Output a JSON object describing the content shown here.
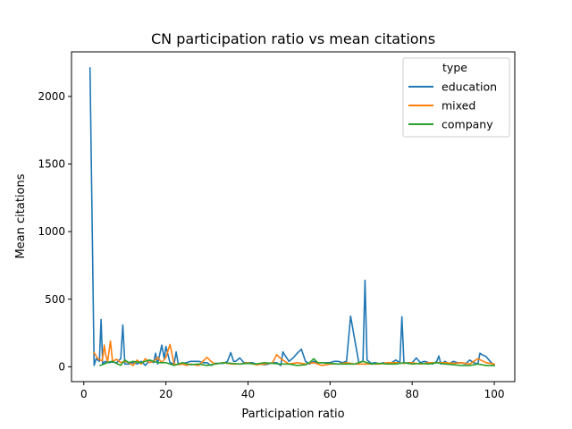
{
  "chart_data": {
    "type": "line",
    "title": "CN participation ratio vs mean citations",
    "xlabel": "Participation ratio",
    "ylabel": "Mean citations",
    "xlim": [
      -3,
      105
    ],
    "ylim": [
      -110,
      2330
    ],
    "xticks": [
      0,
      20,
      40,
      60,
      80,
      100
    ],
    "yticks": [
      0,
      500,
      1000,
      1500,
      2000
    ],
    "grid": false,
    "legend": {
      "title": "type",
      "placement": "top-right"
    },
    "series": [
      {
        "name": "education",
        "color": "#1f77b4",
        "points": [
          [
            1.5,
            2210
          ],
          [
            2.5,
            10
          ],
          [
            3,
            60
          ],
          [
            3.8,
            40
          ],
          [
            4.2,
            350
          ],
          [
            4.6,
            20
          ],
          [
            5.2,
            40
          ],
          [
            6,
            30
          ],
          [
            7,
            35
          ],
          [
            8,
            30
          ],
          [
            9,
            60
          ],
          [
            9.5,
            310
          ],
          [
            10,
            20
          ],
          [
            11,
            20
          ],
          [
            12,
            30
          ],
          [
            13,
            20
          ],
          [
            14,
            40
          ],
          [
            15,
            10
          ],
          [
            16,
            50
          ],
          [
            17,
            30
          ],
          [
            17.5,
            100
          ],
          [
            18,
            20
          ],
          [
            19,
            160
          ],
          [
            19.6,
            60
          ],
          [
            20,
            150
          ],
          [
            21,
            30
          ],
          [
            22,
            20
          ],
          [
            22.5,
            110
          ],
          [
            23,
            20
          ],
          [
            25,
            30
          ],
          [
            26,
            40
          ],
          [
            27,
            40
          ],
          [
            28,
            40
          ],
          [
            29,
            30
          ],
          [
            30,
            30
          ],
          [
            31,
            10
          ],
          [
            32,
            25
          ],
          [
            33,
            25
          ],
          [
            34,
            25
          ],
          [
            35,
            40
          ],
          [
            35.8,
            105
          ],
          [
            36.5,
            40
          ],
          [
            37,
            40
          ],
          [
            38,
            65
          ],
          [
            39,
            30
          ],
          [
            40,
            30
          ],
          [
            41,
            30
          ],
          [
            42,
            20
          ],
          [
            43,
            20
          ],
          [
            44,
            15
          ],
          [
            45,
            20
          ],
          [
            46,
            30
          ],
          [
            47,
            30
          ],
          [
            48,
            10
          ],
          [
            48.5,
            110
          ],
          [
            49,
            85
          ],
          [
            50,
            40
          ],
          [
            51,
            65
          ],
          [
            52,
            100
          ],
          [
            53,
            130
          ],
          [
            54,
            40
          ],
          [
            55,
            20
          ],
          [
            56,
            40
          ],
          [
            57,
            30
          ],
          [
            58,
            30
          ],
          [
            59,
            30
          ],
          [
            60,
            30
          ],
          [
            61,
            40
          ],
          [
            62,
            40
          ],
          [
            63,
            30
          ],
          [
            64,
            40
          ],
          [
            65,
            375
          ],
          [
            66,
            200
          ],
          [
            67,
            30
          ],
          [
            68,
            40
          ],
          [
            68.5,
            640
          ],
          [
            69,
            50
          ],
          [
            70,
            25
          ],
          [
            71,
            30
          ],
          [
            72,
            20
          ],
          [
            73,
            30
          ],
          [
            74,
            20
          ],
          [
            75,
            30
          ],
          [
            76,
            50
          ],
          [
            77,
            30
          ],
          [
            77.5,
            370
          ],
          [
            78,
            25
          ],
          [
            79,
            30
          ],
          [
            80,
            30
          ],
          [
            81,
            65
          ],
          [
            82,
            30
          ],
          [
            83,
            40
          ],
          [
            84,
            30
          ],
          [
            85,
            20
          ],
          [
            86,
            40
          ],
          [
            86.5,
            80
          ],
          [
            87,
            20
          ],
          [
            88,
            40
          ],
          [
            89,
            20
          ],
          [
            90,
            40
          ],
          [
            91,
            30
          ],
          [
            92,
            30
          ],
          [
            93,
            20
          ],
          [
            94,
            50
          ],
          [
            95,
            30
          ],
          [
            96,
            20
          ],
          [
            96.5,
            100
          ],
          [
            97,
            90
          ],
          [
            98,
            75
          ],
          [
            99,
            40
          ],
          [
            100,
            10
          ]
        ]
      },
      {
        "name": "mixed",
        "color": "#ff7f0e",
        "points": [
          [
            2.5,
            105
          ],
          [
            3.5,
            55
          ],
          [
            4.5,
            45
          ],
          [
            5,
            160
          ],
          [
            5.3,
            90
          ],
          [
            5.8,
            40
          ],
          [
            6.5,
            190
          ],
          [
            7,
            40
          ],
          [
            8,
            55
          ],
          [
            9,
            30
          ],
          [
            10,
            40
          ],
          [
            11,
            30
          ],
          [
            12,
            10
          ],
          [
            13,
            50
          ],
          [
            14,
            20
          ],
          [
            15,
            60
          ],
          [
            16,
            30
          ],
          [
            17,
            40
          ],
          [
            18,
            70
          ],
          [
            19,
            30
          ],
          [
            20,
            70
          ],
          [
            21,
            165
          ],
          [
            22,
            20
          ],
          [
            23,
            15
          ],
          [
            24,
            20
          ],
          [
            25,
            10
          ],
          [
            26,
            20
          ],
          [
            28,
            10
          ],
          [
            29,
            40
          ],
          [
            30,
            70
          ],
          [
            31,
            40
          ],
          [
            32,
            20
          ],
          [
            34,
            30
          ],
          [
            36,
            20
          ],
          [
            38,
            20
          ],
          [
            40,
            30
          ],
          [
            42,
            15
          ],
          [
            44,
            20
          ],
          [
            46,
            30
          ],
          [
            47,
            90
          ],
          [
            48,
            60
          ],
          [
            50,
            20
          ],
          [
            52,
            30
          ],
          [
            54,
            20
          ],
          [
            56,
            30
          ],
          [
            58,
            10
          ],
          [
            60,
            20
          ],
          [
            62,
            20
          ],
          [
            64,
            30
          ],
          [
            66,
            20
          ],
          [
            68,
            20
          ],
          [
            70,
            20
          ],
          [
            72,
            20
          ],
          [
            74,
            30
          ],
          [
            76,
            30
          ],
          [
            78,
            25
          ],
          [
            80,
            30
          ],
          [
            82,
            20
          ],
          [
            84,
            30
          ],
          [
            86,
            30
          ],
          [
            88,
            30
          ],
          [
            90,
            25
          ],
          [
            92,
            30
          ],
          [
            94,
            20
          ],
          [
            96,
            60
          ],
          [
            98,
            30
          ],
          [
            100,
            20
          ]
        ]
      },
      {
        "name": "company",
        "color": "#2ca02c",
        "points": [
          [
            4,
            10
          ],
          [
            5,
            20
          ],
          [
            6,
            35
          ],
          [
            7,
            40
          ],
          [
            8,
            25
          ],
          [
            9,
            10
          ],
          [
            10,
            50
          ],
          [
            11,
            30
          ],
          [
            12,
            40
          ],
          [
            14,
            30
          ],
          [
            16,
            50
          ],
          [
            18,
            30
          ],
          [
            20,
            30
          ],
          [
            22,
            10
          ],
          [
            24,
            30
          ],
          [
            26,
            15
          ],
          [
            28,
            20
          ],
          [
            30,
            10
          ],
          [
            32,
            20
          ],
          [
            34,
            30
          ],
          [
            36,
            25
          ],
          [
            38,
            20
          ],
          [
            40,
            25
          ],
          [
            42,
            20
          ],
          [
            44,
            30
          ],
          [
            46,
            25
          ],
          [
            48,
            20
          ],
          [
            50,
            20
          ],
          [
            52,
            10
          ],
          [
            54,
            15
          ],
          [
            55,
            30
          ],
          [
            56,
            60
          ],
          [
            57,
            30
          ],
          [
            58,
            30
          ],
          [
            60,
            25
          ],
          [
            62,
            20
          ],
          [
            64,
            20
          ],
          [
            66,
            20
          ],
          [
            68,
            40
          ],
          [
            70,
            20
          ],
          [
            72,
            25
          ],
          [
            74,
            20
          ],
          [
            76,
            20
          ],
          [
            78,
            30
          ],
          [
            80,
            20
          ],
          [
            82,
            25
          ],
          [
            84,
            20
          ],
          [
            86,
            30
          ],
          [
            88,
            20
          ],
          [
            90,
            15
          ],
          [
            92,
            10
          ],
          [
            94,
            10
          ],
          [
            96,
            20
          ],
          [
            98,
            10
          ],
          [
            100,
            10
          ]
        ]
      }
    ]
  }
}
